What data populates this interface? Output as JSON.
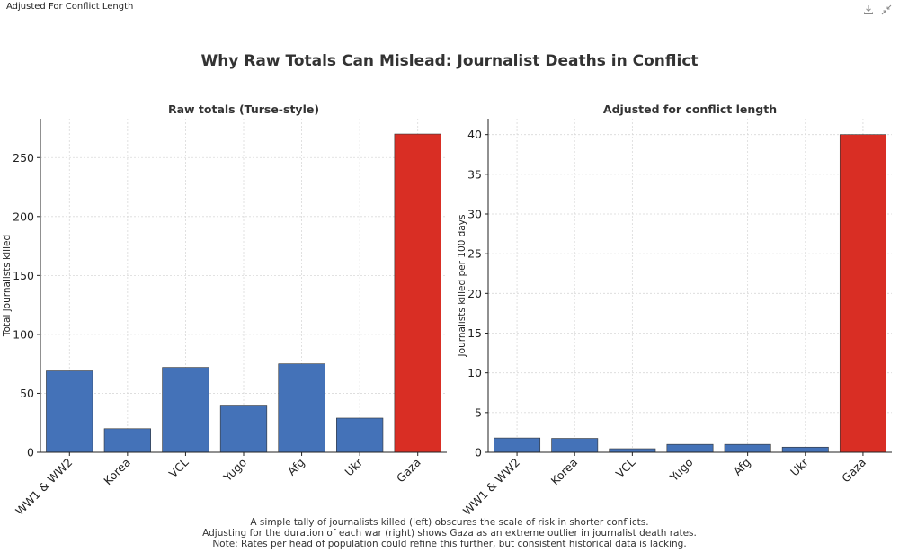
{
  "window": {
    "title": "Adjusted For Conflict Length",
    "icons": [
      "download-icon",
      "collapse-icon"
    ]
  },
  "figure_title": "Why Raw Totals Can Mislead: Journalist Deaths in Conflict",
  "caption": [
    "A simple tally of journalists killed (left) obscures the scale of risk in shorter conflicts.",
    "Adjusting for the duration of each war (right) shows Gaza as an extreme outlier in journalist death rates.",
    "Note: Rates per head of population could refine this further, but consistent historical data is lacking."
  ],
  "colors": {
    "bar": "#4472b8",
    "highlight": "#d92e24",
    "grid": "#d9d9d9",
    "axis": "#222222"
  },
  "chart_data": [
    {
      "type": "bar",
      "title": "Raw totals (Turse-style)",
      "xlabel": "",
      "ylabel": "Total journalists killed",
      "categories": [
        "WW1 & WW2",
        "Korea",
        "VCL",
        "Yugo",
        "Afg",
        "Ukr",
        "Gaza"
      ],
      "values": [
        69,
        20,
        72,
        40,
        75,
        29,
        270
      ],
      "highlight": "Gaza",
      "ylim": [
        0,
        283
      ],
      "yticks": [
        0,
        50,
        100,
        150,
        200,
        250
      ],
      "grid": true
    },
    {
      "type": "bar",
      "title": "Adjusted for conflict length",
      "xlabel": "",
      "ylabel": "Journalists killed per 100 days",
      "categories": [
        "WW1 & WW2",
        "Korea",
        "VCL",
        "Yugo",
        "Afg",
        "Ukr",
        "Gaza"
      ],
      "values": [
        1.8,
        1.75,
        0.45,
        1.0,
        1.0,
        0.65,
        40
      ],
      "highlight": "Gaza",
      "ylim": [
        0,
        42
      ],
      "yticks": [
        0,
        5,
        10,
        15,
        20,
        25,
        30,
        35,
        40
      ],
      "grid": true
    }
  ]
}
